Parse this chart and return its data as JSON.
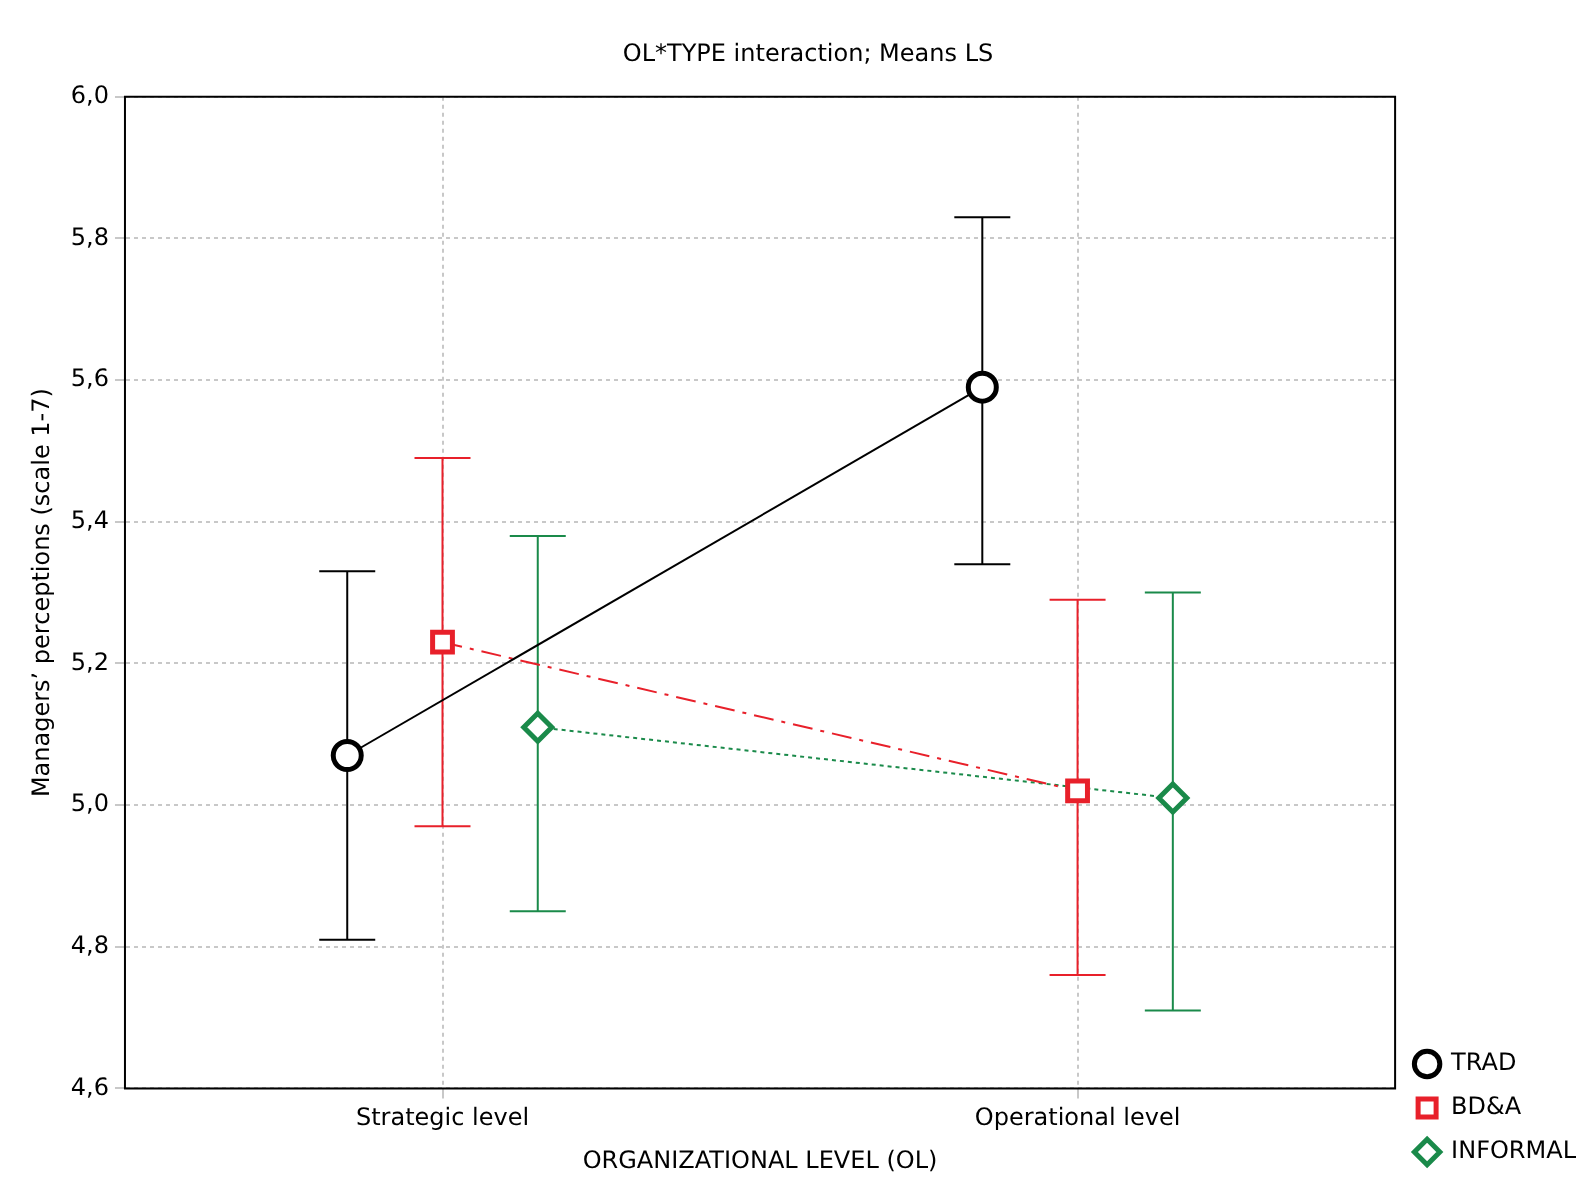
{
  "chart_data": {
    "type": "line",
    "title": "OL*TYPE interaction; Means LS",
    "xlabel": "ORGANIZATIONAL LEVEL (OL)",
    "ylabel": "Managers’ perceptions (scale 1-7)",
    "categories": [
      "Strategic level",
      "Operational level"
    ],
    "series": [
      {
        "name": "TRAD",
        "color": "#000000",
        "values": [
          5.07,
          5.59
        ],
        "errors": [
          [
            4.81,
            5.33
          ],
          [
            5.34,
            5.83
          ]
        ],
        "marker": "circle",
        "line_style": "solid"
      },
      {
        "name": "BD&A",
        "color": "#e8202a",
        "values": [
          5.23,
          5.02
        ],
        "errors": [
          [
            4.97,
            5.49
          ],
          [
            4.76,
            5.29
          ]
        ],
        "marker": "square",
        "line_style": "dashed"
      },
      {
        "name": "INFORMAL",
        "color": "#1a8a4a",
        "values": [
          5.11,
          5.01
        ],
        "errors": [
          [
            4.85,
            5.38
          ],
          [
            4.71,
            5.3
          ]
        ],
        "marker": "diamond",
        "line_style": "dotted"
      }
    ],
    "ylim": [
      4.6,
      6.0
    ],
    "yticks": [
      {
        "value": 4.6,
        "label": "4,6"
      },
      {
        "value": 4.8,
        "label": "4,8"
      },
      {
        "value": 5.0,
        "label": "5,0"
      },
      {
        "value": 5.2,
        "label": "5,2"
      },
      {
        "value": 5.4,
        "label": "5,4"
      },
      {
        "value": 5.6,
        "label": "5,6"
      },
      {
        "value": 5.8,
        "label": "5,8"
      },
      {
        "value": 6.0,
        "label": "6,0"
      }
    ],
    "grid": true,
    "legend": "bottom right"
  }
}
